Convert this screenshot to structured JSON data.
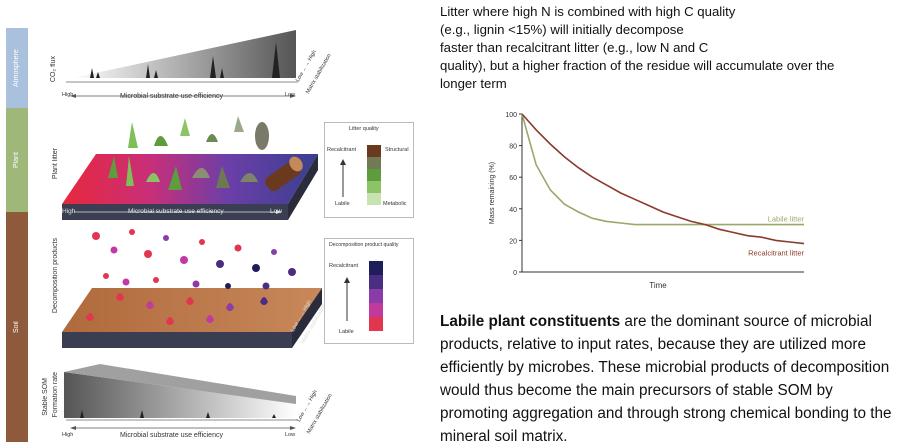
{
  "diagram": {
    "strips": {
      "atmosphere": "Atmosphere",
      "plant": "Plant",
      "soil": "Soil"
    },
    "top_panel": {
      "ylabel": "CO₂ flux",
      "axis_left": "High",
      "axis_label": "Microbial substrate use efficiency",
      "axis_right": "Low",
      "side_label_1": "Low ←→ High",
      "side_label_2": "Matrix stabilization"
    },
    "litter_panel": {
      "ylabel": "Plant litter",
      "axis_left": "High",
      "axis_label": "Microbial substrate use efficiency",
      "axis_right": "Low"
    },
    "litter_legend": {
      "title": "Litter quality",
      "top": "Recalcitrant",
      "top_right": "Structural",
      "bottom": "Labile",
      "bottom_right": "Metabolic",
      "colors": [
        "#6b3a1e",
        "#707a55",
        "#5d9d3e",
        "#8cc465",
        "#c8e2b0"
      ]
    },
    "decomp_panel": {
      "ylabel": "Decomposition products",
      "side_label_1": "Low ←→ High",
      "side_label_2": "Matrix stabilization"
    },
    "decomp_legend": {
      "title": "Decomposition product quality",
      "top": "Recalcitrant",
      "bottom": "Labile",
      "colors": [
        "#1e1e5a",
        "#4b2d82",
        "#8a3ca8",
        "#c23aa0",
        "#e23550"
      ]
    },
    "som_panel": {
      "ylabel_1": "Stable SOM",
      "ylabel_2": "Formation rate",
      "axis_left": "High",
      "axis_label": "Microbial substrate use efficiency",
      "axis_right": "Low",
      "side_label_1": "Low ←→ High",
      "side_label_2": "Matrix stabilization"
    }
  },
  "top_text": {
    "line1": "Litter where high N is combined with high C quality",
    "line2": "(e.g., lignin <15%) will initially decompose",
    "line3": "faster than recalcitrant litter (e.g., low N and C",
    "line4": "quality), but a higher fraction of the residue will accumulate over the",
    "line5": "longer term"
  },
  "chart_data": {
    "type": "line",
    "xlabel": "Time",
    "ylabel": "Mass remaining (%)",
    "ylim": [
      0,
      100
    ],
    "yticks": [
      "0",
      "20",
      "40",
      "60",
      "80",
      "100"
    ],
    "x": [
      0,
      0.05,
      0.1,
      0.15,
      0.2,
      0.25,
      0.3,
      0.35,
      0.4,
      0.45,
      0.5,
      0.55,
      0.6,
      0.65,
      0.7,
      0.75,
      0.8,
      0.85,
      0.9,
      0.95,
      1.0
    ],
    "series": [
      {
        "name": "Labile litter",
        "color": "#9aa86a",
        "values": [
          100,
          68,
          52,
          43,
          38,
          34,
          32,
          31,
          30,
          30,
          30,
          30,
          30,
          30,
          30,
          30,
          30,
          30,
          30,
          30,
          30
        ]
      },
      {
        "name": "Recalcitrant litter",
        "color": "#8b3a2a",
        "values": [
          100,
          90,
          81,
          73,
          66,
          60,
          55,
          50,
          46,
          42,
          38,
          35,
          32,
          30,
          27,
          25,
          23,
          22,
          20,
          19,
          18
        ]
      }
    ],
    "grid": false
  },
  "bottom_text": {
    "bold": "Labile plant constituents",
    "rest": " are the dominant source of microbial products, relative to input rates, because they are utilized more efficiently by microbes. These microbial products of decomposition would thus become the main precursors of stable SOM by promoting aggregation and through strong chemical bonding to the mineral soil matrix."
  }
}
